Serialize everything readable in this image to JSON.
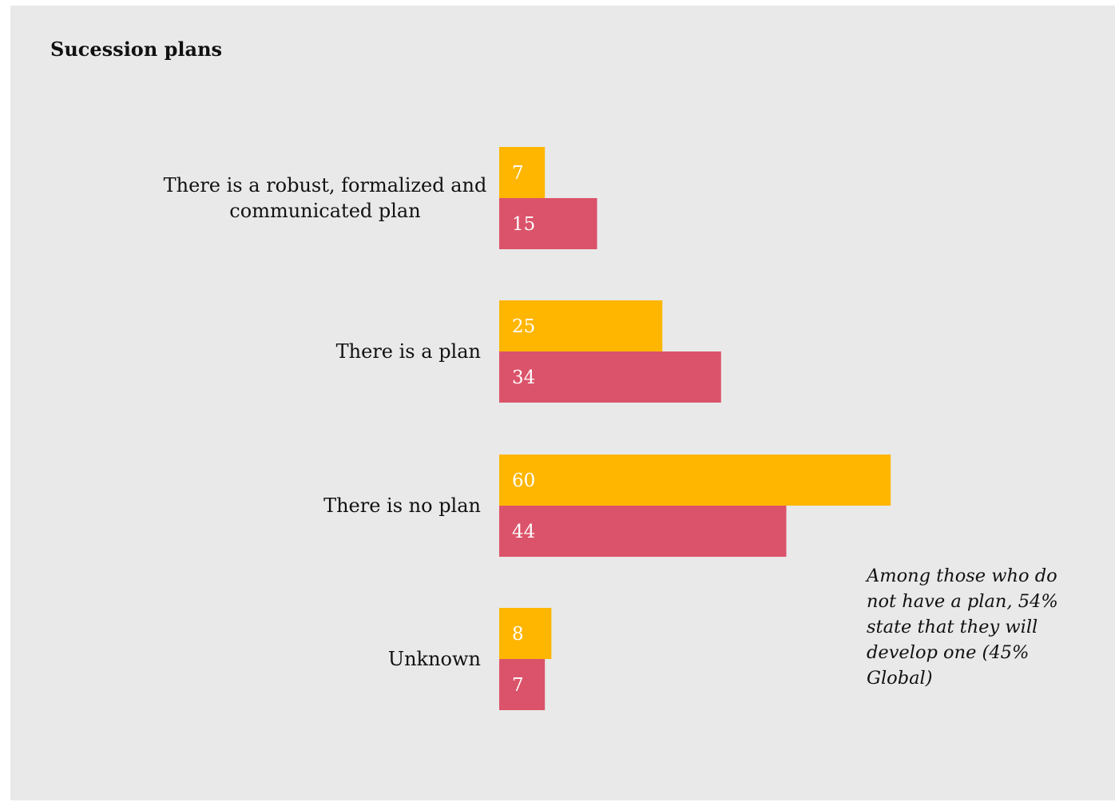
{
  "chart_data": {
    "type": "bar",
    "orientation": "horizontal",
    "title": "Sucession plans",
    "categories": [
      [
        "There is a robust, formalized and",
        "communicated plan"
      ],
      [
        "There is a plan"
      ],
      [
        "There is no plan"
      ],
      [
        "Unknown"
      ]
    ],
    "series": [
      {
        "values": [
          7,
          25,
          60,
          8
        ],
        "color": "#ffb600"
      },
      {
        "values": [
          15,
          34,
          44,
          7
        ],
        "color": "#db536a"
      }
    ],
    "annotation": "Among those who do not have a plan, 54% state that they will develop one  (45% Global)",
    "grid": false,
    "legend": "none"
  }
}
